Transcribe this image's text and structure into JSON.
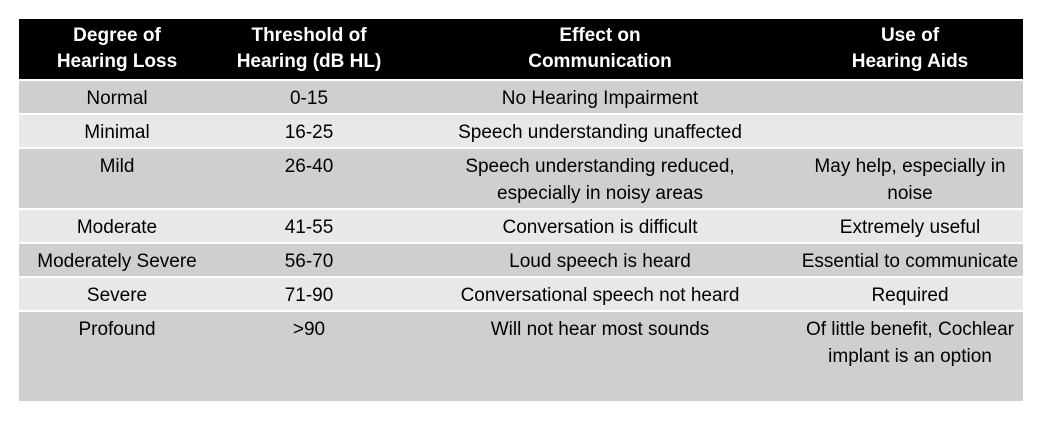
{
  "table": {
    "headers": [
      [
        "Degree of",
        "Hearing Loss"
      ],
      [
        "Threshold of",
        "Hearing (dB HL)"
      ],
      [
        "Effect on",
        "Communication"
      ],
      [
        "Use of",
        "Hearing Aids"
      ]
    ],
    "rows": [
      {
        "degree": "Normal",
        "threshold": "0-15",
        "effect": [
          "No Hearing Impairment"
        ],
        "aids": []
      },
      {
        "degree": "Minimal",
        "threshold": "16-25",
        "effect": [
          "Speech understanding unaffected"
        ],
        "aids": []
      },
      {
        "degree": "Mild",
        "threshold": "26-40",
        "effect": [
          "Speech understanding reduced,",
          "especially in noisy areas"
        ],
        "aids": [
          "May help, especially in",
          "noise"
        ]
      },
      {
        "degree": "Moderate",
        "threshold": "41-55",
        "effect": [
          "Conversation is difficult"
        ],
        "aids": [
          "Extremely useful"
        ]
      },
      {
        "degree": "Moderately Severe",
        "threshold": "56-70",
        "effect": [
          "Loud speech is heard"
        ],
        "aids": [
          "Essential to communicate"
        ]
      },
      {
        "degree": "Severe",
        "threshold": "71-90",
        "effect": [
          "Conversational speech not heard"
        ],
        "aids": [
          "Required"
        ]
      },
      {
        "degree": "Profound",
        "threshold": ">90",
        "effect": [
          "Will not hear most sounds"
        ],
        "aids": [
          "Of little benefit, Cochlear",
          "implant is an option"
        ]
      }
    ]
  },
  "colors": {
    "header_bg": "#000000",
    "header_text": "#ffffff",
    "row_dark": "#cfcfcf",
    "row_light": "#e8e8e8"
  }
}
